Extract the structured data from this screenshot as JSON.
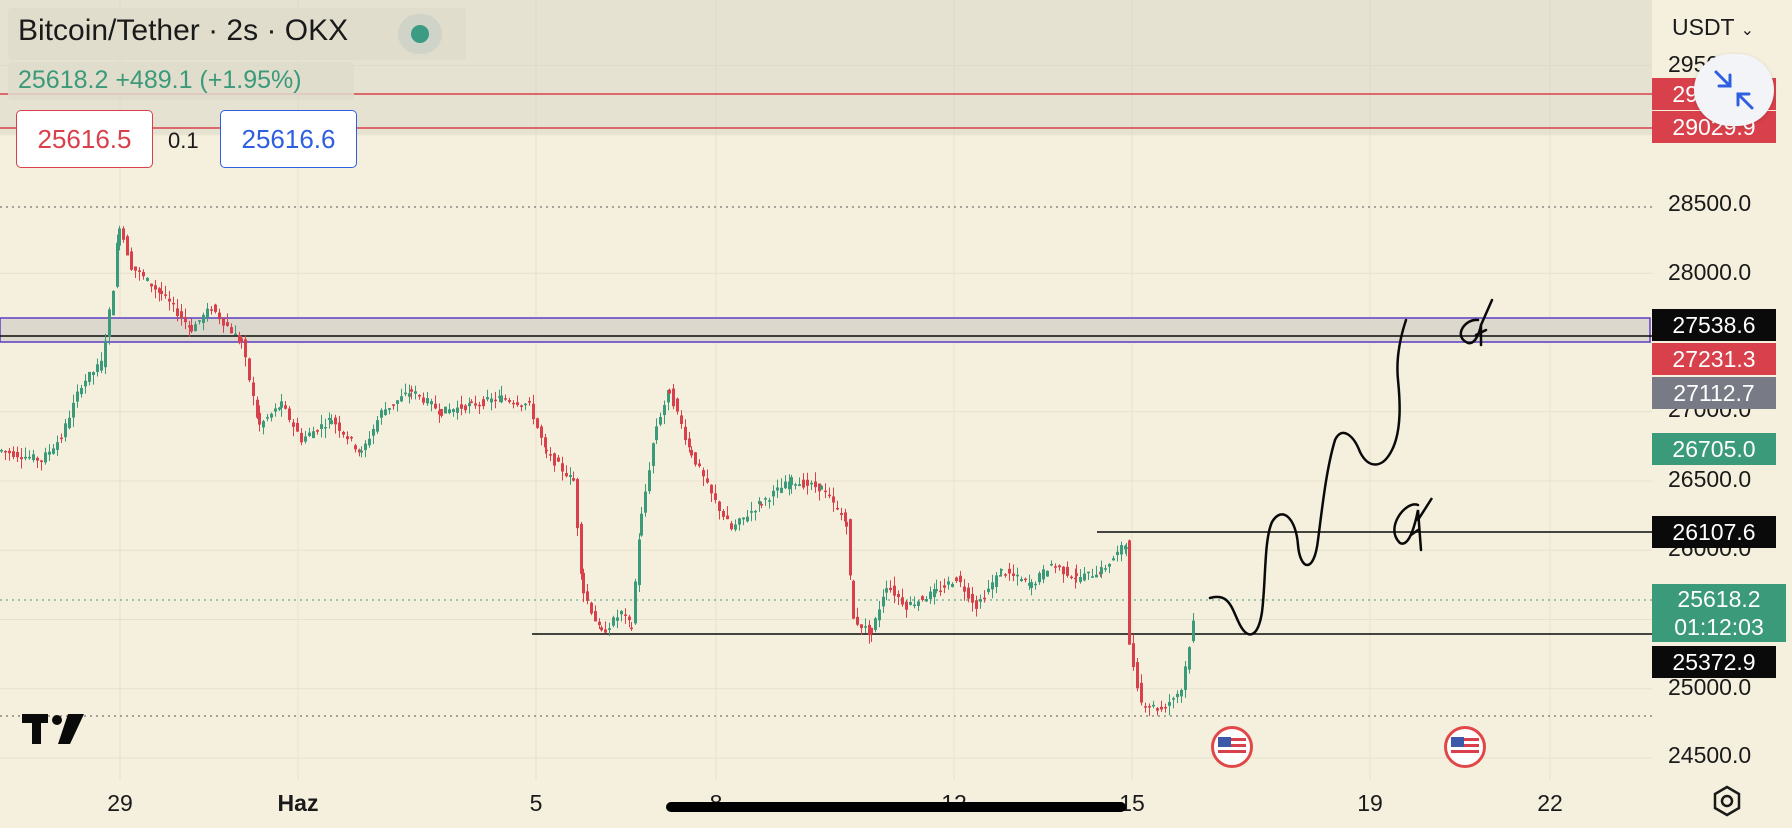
{
  "header": {
    "title": "Bitcoin/Tether · 2s · OKX",
    "last_price": "25618.2",
    "change": "+489.1 (+1.95%)",
    "bid": "25616.5",
    "spread": "0.1",
    "ask": "25616.6"
  },
  "axis": {
    "currency_label": "USDT",
    "tick_labels": [
      "29500.0",
      "28500.0",
      "28000.0",
      "27000.0",
      "26500.0",
      "26000.0",
      "25000.0",
      "24500.0"
    ],
    "time_labels": [
      "29",
      "Haz",
      "5",
      "8",
      "12",
      "15",
      "19",
      "22"
    ]
  },
  "price_labels": [
    {
      "text": "29___.9",
      "color": "#d8414b"
    },
    {
      "text": "29029.9",
      "color": "#d8414b"
    },
    {
      "text": "27538.6",
      "color": "#0a0a0a"
    },
    {
      "text": "27231.3",
      "color": "#d8414b"
    },
    {
      "text": "27112.7",
      "color": "#787b86"
    },
    {
      "text": "26705.0",
      "color": "#3a9a7a"
    },
    {
      "text": "26107.6",
      "color": "#0a0a0a"
    },
    {
      "text": "25618.2",
      "color": "#3a9a7a"
    },
    {
      "text": "01:12:03",
      "color": "#3a9a7a"
    },
    {
      "text": "25372.9",
      "color": "#0a0a0a"
    }
  ],
  "icons": {
    "status": "live-status-dot-icon",
    "collapse": "collapse-arrows-icon",
    "settings": "settings-gear-icon",
    "logo": "tradingview-logo-icon",
    "events": "us-flag-event-icon"
  },
  "colors": {
    "background": "#f5f0de",
    "up": "#3a9a7a",
    "down": "#d8414b",
    "zone_border": "#5b3fc4",
    "ask_blue": "#2f5fe0"
  },
  "chart_data": {
    "type": "candlestick",
    "symbol": "Bitcoin/Tether",
    "interval": "2s",
    "exchange": "OKX",
    "x": [
      "29",
      "Haz",
      "5",
      "8",
      "12",
      "15",
      "19",
      "22"
    ],
    "ylim": [
      24400,
      29700
    ],
    "horizontal_levels": [
      {
        "price": 29029.9,
        "style": "red line"
      },
      {
        "price": 27538.6,
        "style": "shaded zone"
      },
      {
        "price": 26107.6,
        "style": "black line"
      },
      {
        "price": 25372.9,
        "style": "black line"
      }
    ],
    "key_prices": {
      "high": 28500,
      "low": 24750,
      "last": 25618.2,
      "countdown": "01:12:03"
    },
    "grid": true
  }
}
